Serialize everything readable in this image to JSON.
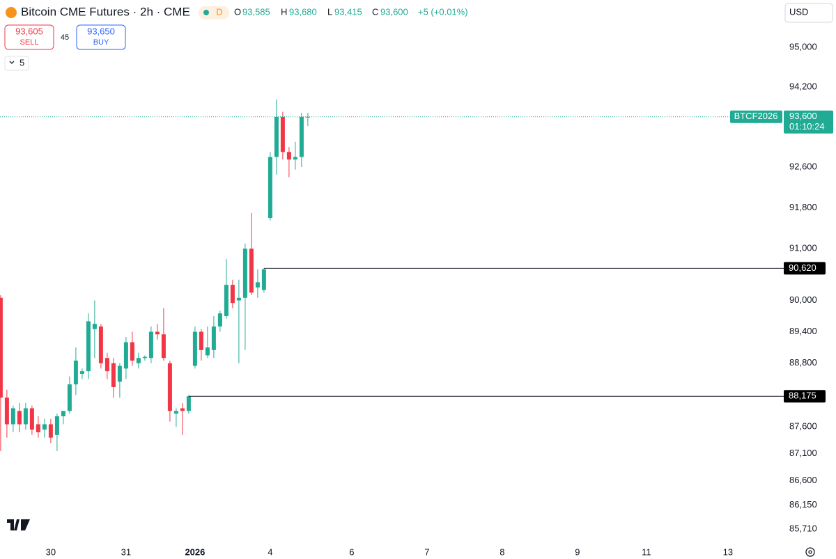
{
  "header": {
    "title": "Bitcoin CME Futures · 2h · CME",
    "badge": "D",
    "ohlc": [
      {
        "key": "O",
        "value": "93,585"
      },
      {
        "key": "H",
        "value": "93,680"
      },
      {
        "key": "L",
        "value": "93,415"
      },
      {
        "key": "C",
        "value": "93,600"
      }
    ],
    "change": "+5 (+0.01%)"
  },
  "trade": {
    "sell_price": "93,605",
    "sell": "SELL",
    "spread": "45",
    "buy_price": "93,650",
    "buy": "BUY"
  },
  "indicators_count": "5",
  "currency": "USD",
  "chart_data": {
    "type": "candlestick",
    "log_scale": true,
    "x": [
      0,
      1,
      2,
      3,
      4,
      5,
      6,
      7,
      8,
      9,
      10,
      11,
      12,
      13,
      14,
      15,
      16,
      17,
      18,
      19,
      20,
      21,
      22,
      23,
      24,
      25,
      26,
      27,
      28,
      29,
      30,
      31,
      32,
      33,
      34,
      35,
      36,
      37,
      38,
      39,
      40,
      41,
      42,
      43,
      44,
      45,
      46,
      47,
      48,
      49
    ],
    "open": [
      90050,
      88150,
      87650,
      87900,
      87650,
      87950,
      87650,
      87550,
      87650,
      87450,
      87800,
      87900,
      88400,
      88600,
      88650,
      89450,
      89500,
      88900,
      88800,
      88450,
      88700,
      89200,
      88800,
      88900,
      88900,
      89400,
      89350,
      88800,
      87850,
      87950,
      87900,
      88750,
      89400,
      88950,
      89050,
      89500,
      89700,
      90300,
      90000,
      90050,
      91000,
      90250,
      90200,
      91600,
      92800,
      93600,
      92900,
      92750,
      92800,
      93585
    ],
    "high": [
      90100,
      88300,
      88000,
      88050,
      88050,
      88000,
      87800,
      87750,
      87750,
      87850,
      87900,
      88550,
      89100,
      88700,
      89750,
      90000,
      89550,
      89000,
      88900,
      88800,
      89300,
      89400,
      89000,
      88950,
      89500,
      89550,
      89850,
      88850,
      87950,
      88050,
      88200,
      89500,
      89450,
      89500,
      89700,
      89800,
      90800,
      90400,
      90400,
      91100,
      91700,
      90600,
      90620,
      92900,
      93950,
      93700,
      93000,
      93100,
      93680,
      93680
    ],
    "low": [
      87150,
      87400,
      87500,
      87500,
      87550,
      87450,
      87400,
      87400,
      87300,
      87150,
      87650,
      87850,
      88200,
      88500,
      88500,
      88900,
      88700,
      88500,
      88150,
      88150,
      88500,
      88750,
      88700,
      88850,
      88800,
      89250,
      88850,
      87700,
      87600,
      87450,
      87850,
      88700,
      88850,
      88900,
      88900,
      89400,
      89650,
      89850,
      88800,
      89050,
      90100,
      90050,
      90150,
      91550,
      92450,
      92750,
      92400,
      92550,
      92600,
      93415
    ],
    "close": [
      88150,
      87650,
      87950,
      87650,
      87950,
      87550,
      87500,
      87650,
      87400,
      87800,
      87900,
      88400,
      88850,
      88650,
      89600,
      89550,
      88800,
      88650,
      88350,
      88750,
      89200,
      88850,
      88900,
      88920,
      89400,
      89350,
      88900,
      87900,
      87900,
      87900,
      88175,
      89400,
      89050,
      89100,
      89500,
      89750,
      90300,
      89950,
      90050,
      91000,
      90150,
      90350,
      90600,
      92800,
      93600,
      92900,
      92750,
      92800,
      93600,
      93600
    ],
    "up_color": "#22ab94",
    "down_color": "#f23645",
    "xlim": [
      -0.1,
      124.9
    ],
    "xticks": [
      {
        "value": 8,
        "label": "30"
      },
      {
        "value": 20,
        "label": "31"
      },
      {
        "value": 31,
        "label": "2026"
      },
      {
        "value": 43,
        "label": "4"
      },
      {
        "value": 56,
        "label": "6"
      },
      {
        "value": 68,
        "label": "7"
      },
      {
        "value": 80,
        "label": "8"
      },
      {
        "value": 92,
        "label": "9"
      },
      {
        "value": 103,
        "label": "11"
      },
      {
        "value": 116,
        "label": "13"
      }
    ],
    "ylim": [
      85455,
      95965
    ],
    "yticks": [
      {
        "value": 95000,
        "label": "95,000"
      },
      {
        "value": 94200,
        "label": "94,200"
      },
      {
        "value": 92600,
        "label": "92,600"
      },
      {
        "value": 91800,
        "label": "91,800"
      },
      {
        "value": 91000,
        "label": "91,000"
      },
      {
        "value": 90000,
        "label": "90,000"
      },
      {
        "value": 89400,
        "label": "89,400"
      },
      {
        "value": 88800,
        "label": "88,800"
      },
      {
        "value": 87600,
        "label": "87,600"
      },
      {
        "value": 87100,
        "label": "87,100"
      },
      {
        "value": 86600,
        "label": "86,600"
      },
      {
        "value": 86150,
        "label": "86,150"
      },
      {
        "value": 85710,
        "label": "85,710"
      }
    ],
    "levels": [
      {
        "value": 90620,
        "label": "90,620",
        "start": 42
      },
      {
        "value": 88175,
        "label": "88,175",
        "start": 30
      }
    ],
    "last_price": {
      "value": 93600,
      "label": "93,600",
      "countdown": "01:10:24",
      "symbol": "BTCF2026"
    }
  }
}
